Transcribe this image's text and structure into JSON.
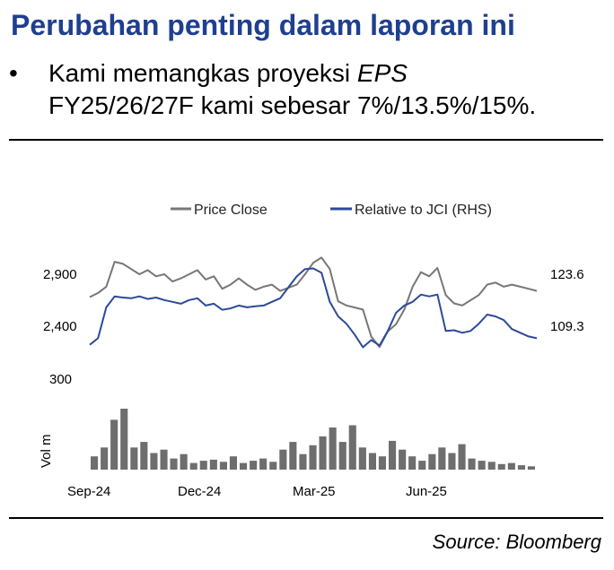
{
  "heading": "Perubahan penting dalam laporan ini",
  "bullet": {
    "symbol": "•",
    "text_plain": "Kami memangkas proyeksi ",
    "text_italic": "EPS",
    "text_line2": "FY25/26/27F kami sebesar 7%/13.5%/15%."
  },
  "source": "Source: Bloomberg",
  "colors": {
    "heading": "#1f3f8f",
    "price": "#777777",
    "relative": "#2b4a9a",
    "volume": "#6e6e6e"
  },
  "chart_data": {
    "type": "line",
    "legend": [
      "Price Close",
      "Relative to JCI (RHS)"
    ],
    "legend_position": "top-center",
    "x_ticks": [
      "Sep-24",
      "Dec-24",
      "Mar-25",
      "Jun-25"
    ],
    "left_axis": {
      "ticks": [
        "2,900",
        "2,400",
        "300"
      ],
      "tick_values": [
        2900,
        2400
      ]
    },
    "right_axis": {
      "ticks": [
        "123.6",
        "109.3"
      ],
      "tick_values": [
        123.6,
        109.3
      ]
    },
    "volume_label": "Vol m",
    "grid": false,
    "series": [
      {
        "name": "Price Close",
        "values": [
          2680,
          2720,
          2780,
          3020,
          3000,
          2950,
          2900,
          2940,
          2880,
          2900,
          2830,
          2860,
          2900,
          2940,
          2850,
          2880,
          2760,
          2800,
          2860,
          2800,
          2750,
          2780,
          2800,
          2740,
          2770,
          2800,
          2900,
          3010,
          3060,
          2950,
          2640,
          2600,
          2580,
          2560,
          2300,
          2200,
          2350,
          2420,
          2560,
          2780,
          2920,
          2880,
          2960,
          2700,
          2620,
          2600,
          2650,
          2700,
          2800,
          2820,
          2780,
          2800,
          2780,
          2760,
          2740
        ]
      },
      {
        "name": "Relative to JCI (RHS)",
        "values": [
          104.2,
          106.0,
          114.5,
          117.5,
          117.2,
          117.0,
          117.5,
          116.8,
          117.2,
          116.5,
          116.0,
          115.5,
          116.5,
          117.0,
          115.0,
          115.5,
          113.8,
          114.2,
          115.0,
          114.5,
          114.8,
          115.0,
          116.0,
          117.0,
          120.0,
          123.0,
          125.0,
          125.2,
          124.0,
          116.0,
          112.0,
          110.0,
          107.0,
          103.5,
          105.5,
          104.0,
          108.0,
          113.0,
          115.0,
          116.0,
          118.0,
          117.5,
          118.0,
          108.0,
          108.2,
          107.5,
          108.0,
          110.0,
          112.5,
          112.0,
          111.0,
          108.5,
          107.5,
          106.5,
          106.0
        ]
      },
      {
        "name": "Vol m",
        "values": [
          1.2,
          2.0,
          4.5,
          5.5,
          2.0,
          2.5,
          1.5,
          1.8,
          1.0,
          1.4,
          0.6,
          0.8,
          0.9,
          0.7,
          1.2,
          0.6,
          0.8,
          1.0,
          0.7,
          1.8,
          2.5,
          1.4,
          2.2,
          3.0,
          3.8,
          2.5,
          4.0,
          2.0,
          1.5,
          1.2,
          2.6,
          1.8,
          1.2,
          0.8,
          1.4,
          2.0,
          1.5,
          2.3,
          1.0,
          0.8,
          0.7,
          0.5,
          0.6,
          0.4,
          0.3
        ]
      }
    ]
  }
}
